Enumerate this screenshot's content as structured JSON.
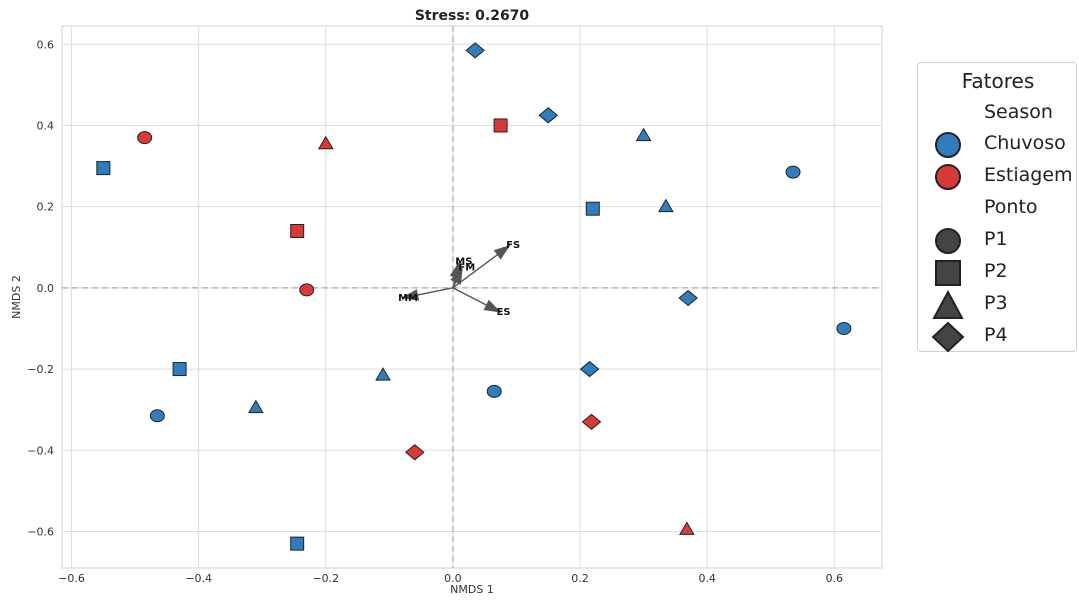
{
  "chart_data": {
    "type": "scatter",
    "title": "Stress: 0.2670",
    "xlabel": "NMDS 1",
    "ylabel": "NMDS 2",
    "xlim": [
      -0.615,
      0.675
    ],
    "ylim": [
      -0.69,
      0.645
    ],
    "xticks": [
      -0.6,
      -0.4,
      -0.2,
      0.0,
      0.2,
      0.4,
      0.6
    ],
    "xtick_labels": [
      "−0.6",
      "−0.4",
      "−0.2",
      "0.0",
      "0.2",
      "0.4",
      "0.6"
    ],
    "yticks": [
      -0.6,
      -0.4,
      -0.2,
      0.0,
      0.2,
      0.4,
      0.6
    ],
    "ytick_labels": [
      "−0.6",
      "−0.4",
      "−0.2",
      "0.0",
      "0.2",
      "0.4",
      "0.6"
    ],
    "grid": true,
    "reference_lines": {
      "x": 0,
      "y": 0,
      "style": "dashed"
    },
    "colors": {
      "Chuvoso": "#2f7dbf",
      "Estiagem": "#d83a3a"
    },
    "points": [
      {
        "x": 0.035,
        "y": 0.585,
        "season": "Chuvoso",
        "ponto": "P4"
      },
      {
        "x": 0.15,
        "y": 0.425,
        "season": "Chuvoso",
        "ponto": "P4"
      },
      {
        "x": 0.075,
        "y": 0.4,
        "season": "Estiagem",
        "ponto": "P2"
      },
      {
        "x": 0.3,
        "y": 0.375,
        "season": "Chuvoso",
        "ponto": "P3"
      },
      {
        "x": -0.485,
        "y": 0.37,
        "season": "Estiagem",
        "ponto": "P1"
      },
      {
        "x": -0.2,
        "y": 0.355,
        "season": "Estiagem",
        "ponto": "P3"
      },
      {
        "x": -0.55,
        "y": 0.295,
        "season": "Chuvoso",
        "ponto": "P2"
      },
      {
        "x": 0.535,
        "y": 0.285,
        "season": "Chuvoso",
        "ponto": "P1"
      },
      {
        "x": 0.335,
        "y": 0.2,
        "season": "Chuvoso",
        "ponto": "P3"
      },
      {
        "x": 0.22,
        "y": 0.195,
        "season": "Chuvoso",
        "ponto": "P2"
      },
      {
        "x": -0.245,
        "y": 0.14,
        "season": "Estiagem",
        "ponto": "P2"
      },
      {
        "x": -0.23,
        "y": -0.005,
        "season": "Estiagem",
        "ponto": "P1"
      },
      {
        "x": 0.37,
        "y": -0.025,
        "season": "Chuvoso",
        "ponto": "P4"
      },
      {
        "x": 0.615,
        "y": -0.1,
        "season": "Chuvoso",
        "ponto": "P1"
      },
      {
        "x": 0.215,
        "y": -0.2,
        "season": "Chuvoso",
        "ponto": "P4"
      },
      {
        "x": -0.43,
        "y": -0.2,
        "season": "Chuvoso",
        "ponto": "P2"
      },
      {
        "x": -0.11,
        "y": -0.215,
        "season": "Chuvoso",
        "ponto": "P3"
      },
      {
        "x": 0.065,
        "y": -0.255,
        "season": "Chuvoso",
        "ponto": "P1"
      },
      {
        "x": -0.31,
        "y": -0.295,
        "season": "Chuvoso",
        "ponto": "P3"
      },
      {
        "x": -0.465,
        "y": -0.315,
        "season": "Chuvoso",
        "ponto": "P1"
      },
      {
        "x": 0.218,
        "y": -0.33,
        "season": "Estiagem",
        "ponto": "P4"
      },
      {
        "x": -0.06,
        "y": -0.405,
        "season": "Estiagem",
        "ponto": "P4"
      },
      {
        "x": 0.368,
        "y": -0.595,
        "season": "Estiagem",
        "ponto": "P3"
      },
      {
        "x": -0.245,
        "y": -0.63,
        "season": "Chuvoso",
        "ponto": "P2"
      }
    ],
    "vectors": [
      {
        "label": "FS",
        "x": 0.09,
        "y": 0.105
      },
      {
        "label": "MS",
        "x": 0.01,
        "y": 0.065
      },
      {
        "label": "FM",
        "x": 0.015,
        "y": 0.05
      },
      {
        "label": "MM",
        "x": -0.08,
        "y": -0.025
      },
      {
        "label": "ES",
        "x": 0.075,
        "y": -0.06
      }
    ],
    "legend": {
      "title": "Fatores",
      "placement": "outside-right",
      "season_heading": "Season",
      "season_items": [
        {
          "label": "Chuvoso",
          "color": "#2f7dbf"
        },
        {
          "label": "Estiagem",
          "color": "#d83a3a"
        }
      ],
      "ponto_heading": "Ponto",
      "ponto_items": [
        {
          "label": "P1",
          "marker": "circle"
        },
        {
          "label": "P2",
          "marker": "square"
        },
        {
          "label": "P3",
          "marker": "triangle"
        },
        {
          "label": "P4",
          "marker": "diamond"
        }
      ]
    }
  }
}
